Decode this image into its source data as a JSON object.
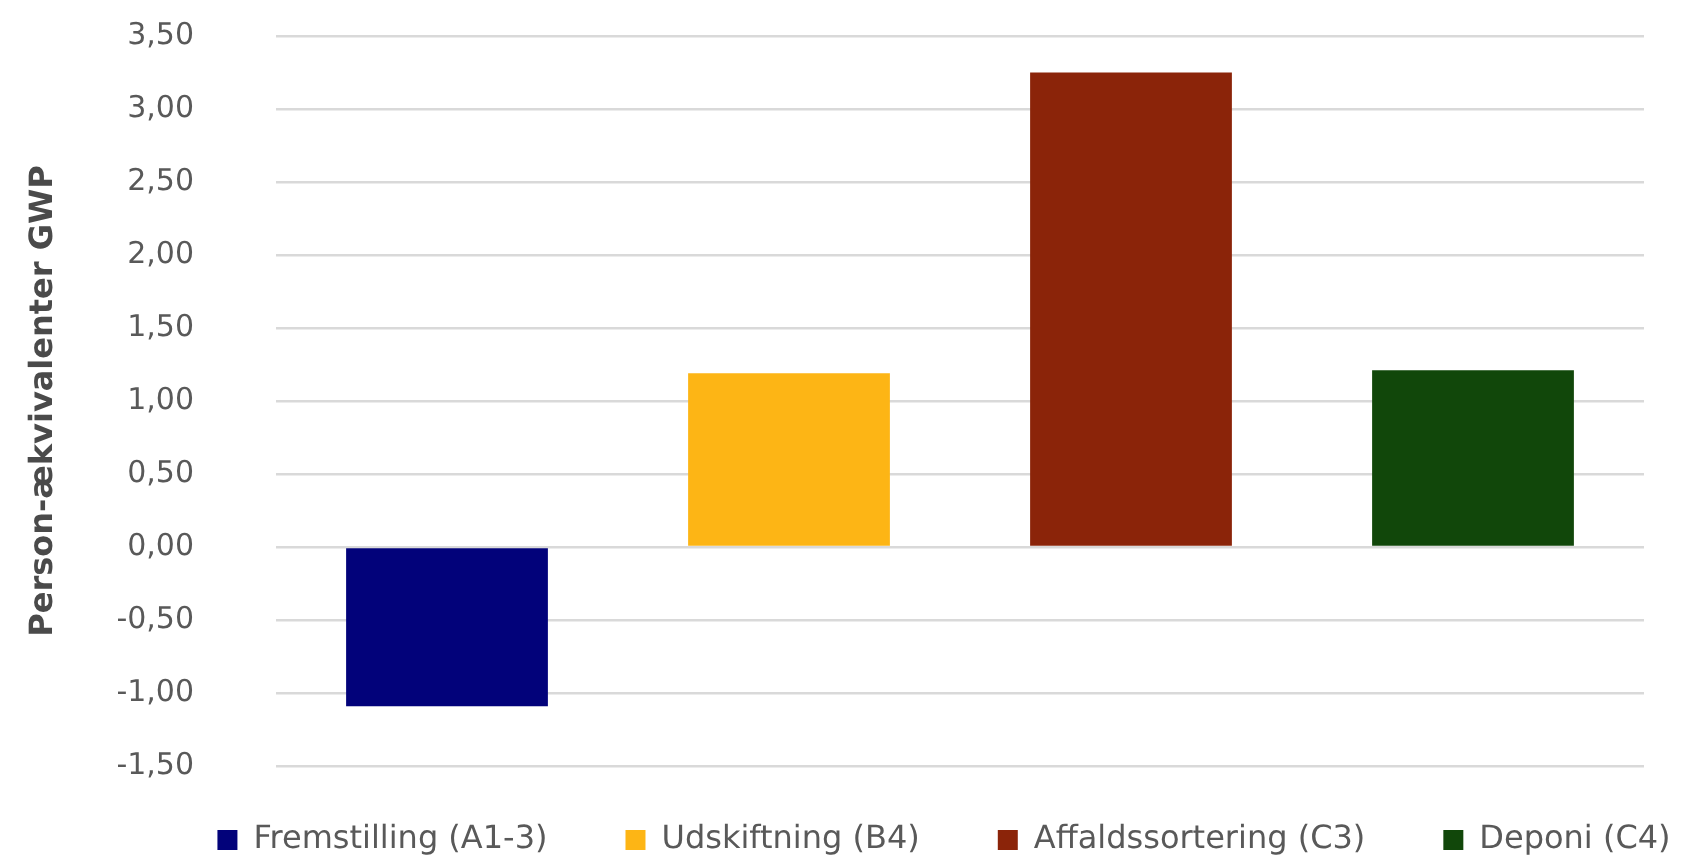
{
  "chart_data": {
    "type": "bar",
    "categories": [
      null,
      null,
      null,
      null
    ],
    "series": [
      {
        "name": "Fremstilling (A1-3)",
        "color": "#02027a",
        "values": [
          -1.09,
          null,
          null,
          null
        ]
      },
      {
        "name": "Udskiftning (B4)",
        "color": "#fdb515",
        "values": [
          null,
          1.19,
          null,
          null
        ]
      },
      {
        "name": "Affaldssortering (C3)",
        "color": "#8b2409",
        "values": [
          null,
          null,
          3.25,
          null
        ]
      },
      {
        "name": "Deponi (C4)",
        "color": "#11470a",
        "values": [
          null,
          null,
          null,
          1.21
        ]
      }
    ],
    "ylabel": "Person-ækvivalenter GWP",
    "ylim": [
      -1.5,
      3.5
    ],
    "yticks": [
      {
        "value": -1.5,
        "label": "-1,50"
      },
      {
        "value": -1,
        "label": "-1,00"
      },
      {
        "value": -0.5,
        "label": "-0,50"
      },
      {
        "value": 0,
        "label": "0,00"
      },
      {
        "value": 0.5,
        "label": "0,50"
      },
      {
        "value": 1,
        "label": "1,00"
      },
      {
        "value": 1.5,
        "label": "1,50"
      },
      {
        "value": 2,
        "label": "2,00"
      },
      {
        "value": 2.5,
        "label": "2,50"
      },
      {
        "value": 3,
        "label": "3,00"
      },
      {
        "value": 3.5,
        "label": "3,50"
      }
    ],
    "grid": "y",
    "legend": "bottom",
    "tick_labels": "y"
  }
}
